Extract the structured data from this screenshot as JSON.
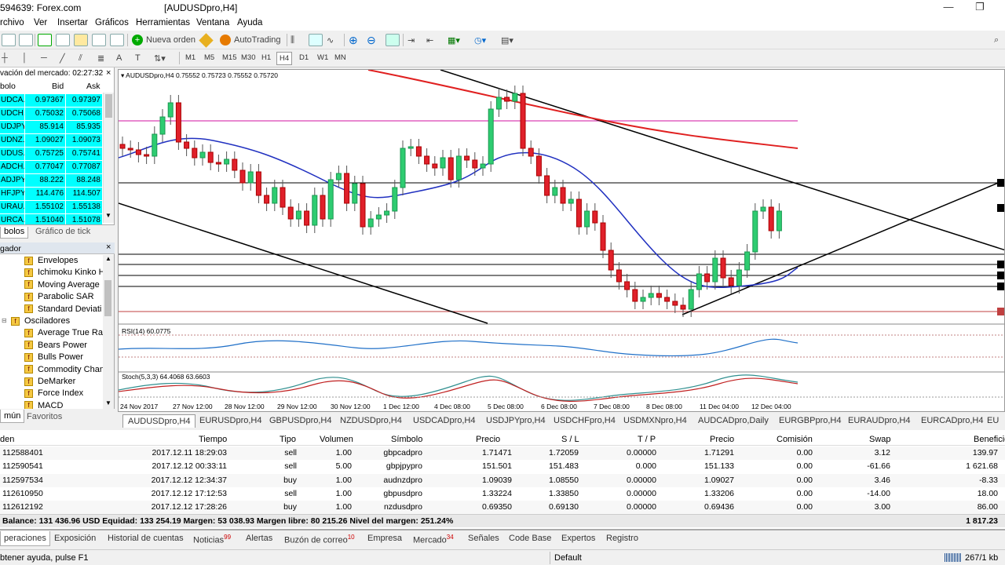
{
  "window": {
    "title_left": "594639: Forex.com",
    "title_doc": "[AUDUSDpro,H4]"
  },
  "menu": [
    "rchivo",
    "Ver",
    "Insertar",
    "Gráficos",
    "Herramientas",
    "Ventana",
    "Ayuda"
  ],
  "toolbar": {
    "new_order": "Nueva orden",
    "autotrading": "AutoTrading"
  },
  "timeframes": [
    "M1",
    "M5",
    "M15",
    "M30",
    "H1",
    "H4",
    "D1",
    "W1",
    "MN"
  ],
  "market_watch": {
    "header_title": "vación del mercado: 02:27:32",
    "col_symbol": "bolo",
    "col_bid": "Bid",
    "col_ask": "Ask",
    "rows": [
      {
        "sym": "UDCA...",
        "bid": "0.97367",
        "ask": "0.97397"
      },
      {
        "sym": "UDCH...",
        "bid": "0.75032",
        "ask": "0.75068"
      },
      {
        "sym": "UDJPY...",
        "bid": "85.914",
        "ask": "85.935"
      },
      {
        "sym": "UDNZ...",
        "bid": "1.09027",
        "ask": "1.09073"
      },
      {
        "sym": "UDUS...",
        "bid": "0.75725",
        "ask": "0.75741"
      },
      {
        "sym": "ADCH...",
        "bid": "0.77047",
        "ask": "0.77087"
      },
      {
        "sym": "ADJPY...",
        "bid": "88.222",
        "ask": "88.248"
      },
      {
        "sym": "HFJPY...",
        "bid": "114.476",
        "ask": "114.507"
      },
      {
        "sym": "URAU...",
        "bid": "1.55102",
        "ask": "1.55138"
      },
      {
        "sym": "URCA...",
        "bid": "1.51040",
        "ask": "1.51078"
      }
    ],
    "tab_symbols": "bolos",
    "tab_tick": "Gráfico de tick"
  },
  "navigator": {
    "title": "gador",
    "items": [
      {
        "label": "Envelopes",
        "indent": 1
      },
      {
        "label": "Ichimoku Kinko H",
        "indent": 1
      },
      {
        "label": "Moving Average",
        "indent": 1
      },
      {
        "label": "Parabolic SAR",
        "indent": 1
      },
      {
        "label": "Standard Deviati",
        "indent": 1
      },
      {
        "label": "Osciladores",
        "indent": 0
      },
      {
        "label": "Average True Rar",
        "indent": 1
      },
      {
        "label": "Bears Power",
        "indent": 1
      },
      {
        "label": "Bulls Power",
        "indent": 1
      },
      {
        "label": "Commodity Chan",
        "indent": 1
      },
      {
        "label": "DeMarker",
        "indent": 1
      },
      {
        "label": "Force Index",
        "indent": 1
      },
      {
        "label": "MACD",
        "indent": 1
      }
    ],
    "tab_common": "mún",
    "tab_fav": "Favoritos"
  },
  "chart": {
    "header": "AUDUSDpro,H4  0.75552 0.75723 0.75552 0.75720",
    "rsi_label": "RSI(14) 60.0775",
    "stoch_label": "Stoch(5,3,3) 64.4068 63.6603",
    "xlabels": [
      "24 Nov 2017",
      "27 Nov 12:00",
      "28 Nov 12:00",
      "29 Nov 12:00",
      "30 Nov 12:00",
      "1 Dec 12:00",
      "4 Dec 08:00",
      "5 Dec 08:00",
      "6 Dec 08:00",
      "7 Dec 08:00",
      "8 Dec 08:00",
      "11 Dec 04:00",
      "12 Dec 04:00"
    ]
  },
  "chart_tabs": [
    "AUDUSDpro,H4",
    "EURUSDpro,H4",
    "GBPUSDpro,H4",
    "NZDUSDpro,H4",
    "USDCADpro,H4",
    "USDJPYpro,H4",
    "USDCHFpro,H4",
    "USDMXNpro,H4",
    "AUDCADpro,Daily",
    "EURGBPpro,H4",
    "EURAUDpro,H4",
    "EURCADpro,H4",
    "EU"
  ],
  "terminal": {
    "headers": {
      "order": "den",
      "time": "Tiempo",
      "type": "Tipo",
      "volume": "Volumen",
      "symbol": "Símbolo",
      "price": "Precio",
      "sl": "S / L",
      "tp": "T / P",
      "price2": "Precio",
      "commission": "Comisión",
      "swap": "Swap",
      "profit": "Beneficio"
    },
    "rows": [
      {
        "order": "112588401",
        "time": "2017.12.11 18:29:03",
        "type": "sell",
        "volume": "1.00",
        "symbol": "gbpcadpro",
        "price": "1.71471",
        "sl": "1.72059",
        "tp": "0.00000",
        "price2": "1.71291",
        "commission": "0.00",
        "swap": "3.12",
        "profit": "139.97"
      },
      {
        "order": "112590541",
        "time": "2017.12.12 00:33:11",
        "type": "sell",
        "volume": "5.00",
        "symbol": "gbpjpypro",
        "price": "151.501",
        "sl": "151.483",
        "tp": "0.000",
        "price2": "151.133",
        "commission": "0.00",
        "swap": "-61.66",
        "profit": "1 621.68"
      },
      {
        "order": "112597534",
        "time": "2017.12.12 12:34:37",
        "type": "buy",
        "volume": "1.00",
        "symbol": "audnzdpro",
        "price": "1.09039",
        "sl": "1.08550",
        "tp": "0.00000",
        "price2": "1.09027",
        "commission": "0.00",
        "swap": "3.46",
        "profit": "-8.33"
      },
      {
        "order": "112610950",
        "time": "2017.12.12 17:12:53",
        "type": "sell",
        "volume": "1.00",
        "symbol": "gbpusdpro",
        "price": "1.33224",
        "sl": "1.33850",
        "tp": "0.00000",
        "price2": "1.33206",
        "commission": "0.00",
        "swap": "-14.00",
        "profit": "18.00"
      },
      {
        "order": "112612192",
        "time": "2017.12.12 17:28:26",
        "type": "buy",
        "volume": "1.00",
        "symbol": "nzdusdpro",
        "price": "0.69350",
        "sl": "0.69130",
        "tp": "0.00000",
        "price2": "0.69436",
        "commission": "0.00",
        "swap": "3.00",
        "profit": "86.00"
      }
    ],
    "balance_line": "Balance: 131 436.96 USD  Equidad: 133 254.19  Margen: 53 038.93  Margen libre: 80 215.26  Nivel del margen: 251.24%",
    "total_profit": "1 817.23"
  },
  "bottom_tabs": [
    {
      "label": "peraciones",
      "badge": ""
    },
    {
      "label": "Exposición",
      "badge": ""
    },
    {
      "label": "Historial de cuentas",
      "badge": ""
    },
    {
      "label": "Noticias",
      "badge": "99"
    },
    {
      "label": "Alertas",
      "badge": ""
    },
    {
      "label": "Buzón de correo",
      "badge": "10"
    },
    {
      "label": "Empresa",
      "badge": ""
    },
    {
      "label": "Mercado",
      "badge": "34"
    },
    {
      "label": "Señales",
      "badge": ""
    },
    {
      "label": "Code Base",
      "badge": ""
    },
    {
      "label": "Expertos",
      "badge": ""
    },
    {
      "label": "Registro",
      "badge": ""
    }
  ],
  "status": {
    "help": "btener ayuda, pulse F1",
    "profile": "Default",
    "traffic": "267/1 kb"
  }
}
